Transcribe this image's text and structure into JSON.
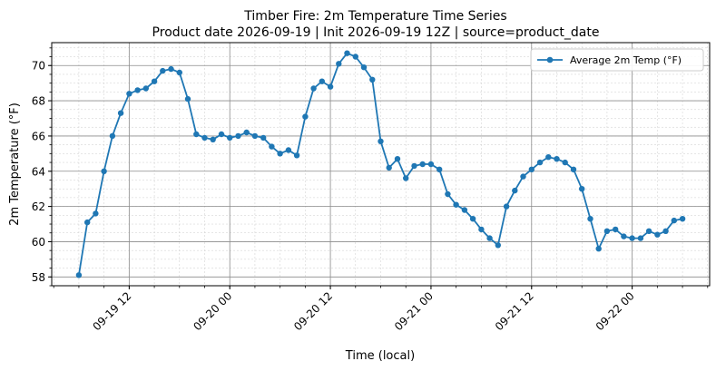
{
  "chart_data": {
    "type": "line",
    "title": "Timber Fire: 2m Temperature Time Series",
    "subtitle": "Product date 2026-09-19 | Init 2026-09-19 12Z | source=product_date",
    "xlabel": "Time (local)",
    "ylabel": "2m Temperature (°F)",
    "x_ticks": [
      "09-19 12",
      "09-20 00",
      "09-20 12",
      "09-21 00",
      "09-21 12",
      "09-22 00"
    ],
    "y_ticks": [
      "58",
      "60",
      "62",
      "64",
      "66",
      "68",
      "70"
    ],
    "ylim": [
      57.5,
      71.3
    ],
    "grid": "major and minor",
    "legend_position": "top-right",
    "series_color": "#1f77b4",
    "series": [
      {
        "name": "Average 2m Temp (°F)",
        "points": [
          [
            "2026-09-19 06:00",
            58.1
          ],
          [
            "2026-09-19 07:00",
            61.1
          ],
          [
            "2026-09-19 08:00",
            61.6
          ],
          [
            "2026-09-19 09:00",
            64.0
          ],
          [
            "2026-09-19 10:00",
            66.0
          ],
          [
            "2026-09-19 11:00",
            67.3
          ],
          [
            "2026-09-19 12:00",
            68.4
          ],
          [
            "2026-09-19 13:00",
            68.6
          ],
          [
            "2026-09-19 14:00",
            68.7
          ],
          [
            "2026-09-19 15:00",
            69.1
          ],
          [
            "2026-09-19 16:00",
            69.7
          ],
          [
            "2026-09-19 17:00",
            69.8
          ],
          [
            "2026-09-19 18:00",
            69.6
          ],
          [
            "2026-09-19 19:00",
            68.1
          ],
          [
            "2026-09-19 20:00",
            66.1
          ],
          [
            "2026-09-19 21:00",
            65.9
          ],
          [
            "2026-09-19 22:00",
            65.8
          ],
          [
            "2026-09-19 23:00",
            66.1
          ],
          [
            "2026-09-20 00:00",
            65.9
          ],
          [
            "2026-09-20 01:00",
            66.0
          ],
          [
            "2026-09-20 02:00",
            66.2
          ],
          [
            "2026-09-20 03:00",
            66.0
          ],
          [
            "2026-09-20 04:00",
            65.9
          ],
          [
            "2026-09-20 05:00",
            65.4
          ],
          [
            "2026-09-20 06:00",
            65.0
          ],
          [
            "2026-09-20 07:00",
            65.2
          ],
          [
            "2026-09-20 08:00",
            64.9
          ],
          [
            "2026-09-20 09:00",
            67.1
          ],
          [
            "2026-09-20 10:00",
            68.7
          ],
          [
            "2026-09-20 11:00",
            69.1
          ],
          [
            "2026-09-20 12:00",
            68.8
          ],
          [
            "2026-09-20 13:00",
            70.1
          ],
          [
            "2026-09-20 14:00",
            70.7
          ],
          [
            "2026-09-20 15:00",
            70.5
          ],
          [
            "2026-09-20 16:00",
            69.9
          ],
          [
            "2026-09-20 17:00",
            69.2
          ],
          [
            "2026-09-20 18:00",
            65.7
          ],
          [
            "2026-09-20 19:00",
            64.2
          ],
          [
            "2026-09-20 20:00",
            64.7
          ],
          [
            "2026-09-20 21:00",
            63.6
          ],
          [
            "2026-09-20 22:00",
            64.3
          ],
          [
            "2026-09-20 23:00",
            64.4
          ],
          [
            "2026-09-21 00:00",
            64.4
          ],
          [
            "2026-09-21 01:00",
            64.1
          ],
          [
            "2026-09-21 02:00",
            62.7
          ],
          [
            "2026-09-21 03:00",
            62.1
          ],
          [
            "2026-09-21 04:00",
            61.8
          ],
          [
            "2026-09-21 05:00",
            61.3
          ],
          [
            "2026-09-21 06:00",
            60.7
          ],
          [
            "2026-09-21 07:00",
            60.2
          ],
          [
            "2026-09-21 08:00",
            59.8
          ],
          [
            "2026-09-21 09:00",
            62.0
          ],
          [
            "2026-09-21 10:00",
            62.9
          ],
          [
            "2026-09-21 11:00",
            63.7
          ],
          [
            "2026-09-21 12:00",
            64.1
          ],
          [
            "2026-09-21 13:00",
            64.5
          ],
          [
            "2026-09-21 14:00",
            64.8
          ],
          [
            "2026-09-21 15:00",
            64.7
          ],
          [
            "2026-09-21 16:00",
            64.5
          ],
          [
            "2026-09-21 17:00",
            64.1
          ],
          [
            "2026-09-21 18:00",
            63.0
          ],
          [
            "2026-09-21 19:00",
            61.3
          ],
          [
            "2026-09-21 20:00",
            59.6
          ],
          [
            "2026-09-21 21:00",
            60.6
          ],
          [
            "2026-09-21 22:00",
            60.7
          ],
          [
            "2026-09-21 23:00",
            60.3
          ],
          [
            "2026-09-22 00:00",
            60.2
          ],
          [
            "2026-09-22 01:00",
            60.2
          ],
          [
            "2026-09-22 02:00",
            60.6
          ],
          [
            "2026-09-22 03:00",
            60.4
          ],
          [
            "2026-09-22 04:00",
            60.6
          ],
          [
            "2026-09-22 05:00",
            61.2
          ],
          [
            "2026-09-22 06:00",
            61.3
          ]
        ]
      }
    ]
  }
}
